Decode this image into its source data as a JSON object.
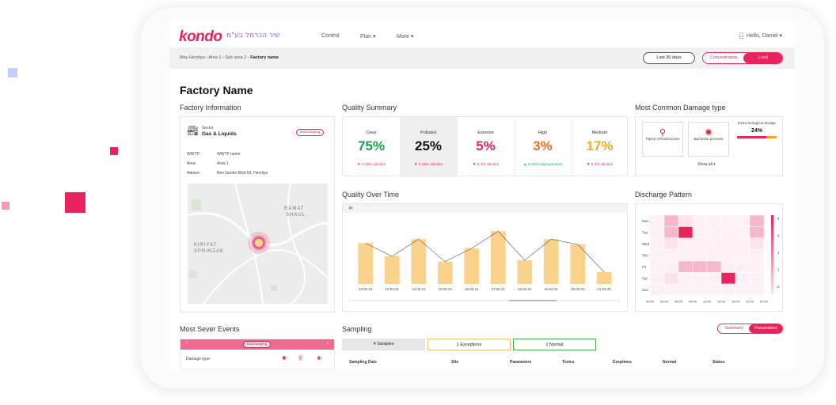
{
  "brand": {
    "logo": "kondo",
    "logo_secondary": "שיר הכרמל בע\"מ",
    "accent": "#e8245c"
  },
  "nav": {
    "control": "Control",
    "plan": "Plan",
    "more": "More",
    "user": "Hello, Daniel"
  },
  "breadcrumb": {
    "path": "Mey Herzliya  ›  Area 1  ›  Sub area 2  › ",
    "current": "Factory name"
  },
  "filters": {
    "range": "Last 30 days",
    "toggle_a": "Concentration",
    "toggle_b": "Load"
  },
  "page_title": "Factory Name",
  "factory_info": {
    "title": "Factory Information",
    "sector_label": "Sector",
    "sector": "Gas & Liquids",
    "status": "Discharging",
    "rows": [
      {
        "k": "WWTP:",
        "v": "WWTP name"
      },
      {
        "k": "Area:",
        "v": "Area 1"
      },
      {
        "k": "Adress:",
        "v": "Ben Gurion Blvd 56, Herzliya"
      }
    ],
    "map_labels": [
      "RAMAT",
      "SHAUL",
      "KIRIYAT",
      "SPRINZAK"
    ]
  },
  "quality_summary": {
    "title": "Quality Summary",
    "items": [
      {
        "label": "Clear",
        "value": "75%",
        "note": "▼ 0.15% decline",
        "color": "#16a34a",
        "note_color": "#e8245c"
      },
      {
        "label": "Polluted",
        "value": "25%",
        "note": "▼ 0.15% decline",
        "color": "#111111",
        "note_color": "#e8245c"
      },
      {
        "label": "Extreme",
        "value": "5%",
        "note": "▼ 0.4% decline",
        "color": "#e8245c",
        "note_color": "#e8245c"
      },
      {
        "label": "High",
        "value": "3%",
        "note": "▲ 0.02% improvement",
        "color": "#f26b1d",
        "note_color": "#16a34a"
      },
      {
        "label": "Medium",
        "value": "17%",
        "note": "▼ 0.4% decline",
        "color": "#f5a623",
        "note_color": "#e8245c"
      }
    ]
  },
  "damage": {
    "title": "Most Common Damage type",
    "items": [
      {
        "label": "Pipes/ Infrastructure"
      },
      {
        "label": "Bacteria/ process"
      },
      {
        "label": "Extra biological sludge",
        "value": "24%"
      }
    ],
    "show_all": "Show all"
  },
  "quality_over_time": {
    "title": "Quality Over Time",
    "param": "Pi"
  },
  "chart_data": {
    "type": "bar",
    "categories": [
      "12.02.21",
      "13.02.21",
      "14.02.21",
      "15.02.21",
      "16.02.21",
      "17.02.21",
      "18.02.21",
      "19.02.21",
      "20.02.21",
      "21.02.21"
    ],
    "values": [
      62,
      42,
      68,
      34,
      54,
      80,
      36,
      68,
      60,
      18
    ],
    "line": [
      62,
      42,
      68,
      34,
      54,
      80,
      36,
      68,
      60,
      18
    ],
    "ylim": [
      0,
      90
    ],
    "bar_color": "#f9d28c",
    "line_color": "#555555"
  },
  "discharge": {
    "title": "Discharge Pattern",
    "days": [
      "Mon",
      "Tue",
      "Wed",
      "Thu",
      "Fri",
      "Sat",
      "Sun"
    ],
    "hours": [
      "00:00",
      "03:00",
      "06:00",
      "09:00",
      "12:00",
      "15:00",
      "18:00",
      "21:00",
      "00:00"
    ],
    "scale": [
      "8",
      "6",
      "4",
      "2",
      "0"
    ]
  },
  "events": {
    "title": "Most Sever Events",
    "status": "Discharging",
    "damage_label": "Damage type:"
  },
  "sampling": {
    "title": "Sampling",
    "toggle_a": "Summary",
    "toggle_b": "Parameters",
    "count": "4  Samples",
    "exceptions": "1  Exceptions",
    "normal": "1  Normal",
    "columns": [
      "Sampling Date",
      "Site",
      "Parameters",
      "Toxics",
      "Exeptions",
      "Normal",
      "Status"
    ]
  }
}
